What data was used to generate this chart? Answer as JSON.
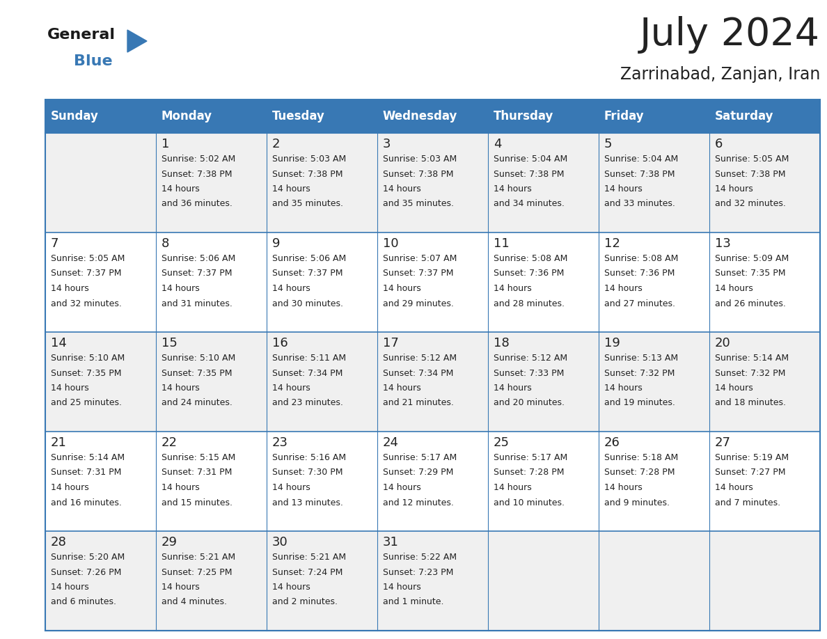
{
  "title": "July 2024",
  "subtitle": "Zarrinabad, Zanjan, Iran",
  "header_color": "#3878b4",
  "header_text_color": "#ffffff",
  "row_bg_odd": "#f0f0f0",
  "row_bg_even": "#ffffff",
  "border_color": "#3878b4",
  "text_color": "#222222",
  "days_of_week": [
    "Sunday",
    "Monday",
    "Tuesday",
    "Wednesday",
    "Thursday",
    "Friday",
    "Saturday"
  ],
  "weeks": [
    [
      {
        "day": "",
        "sunrise": "",
        "sunset": "",
        "daylight": ""
      },
      {
        "day": "1",
        "sunrise": "5:02 AM",
        "sunset": "7:38 PM",
        "daylight": "14 hours\nand 36 minutes."
      },
      {
        "day": "2",
        "sunrise": "5:03 AM",
        "sunset": "7:38 PM",
        "daylight": "14 hours\nand 35 minutes."
      },
      {
        "day": "3",
        "sunrise": "5:03 AM",
        "sunset": "7:38 PM",
        "daylight": "14 hours\nand 35 minutes."
      },
      {
        "day": "4",
        "sunrise": "5:04 AM",
        "sunset": "7:38 PM",
        "daylight": "14 hours\nand 34 minutes."
      },
      {
        "day": "5",
        "sunrise": "5:04 AM",
        "sunset": "7:38 PM",
        "daylight": "14 hours\nand 33 minutes."
      },
      {
        "day": "6",
        "sunrise": "5:05 AM",
        "sunset": "7:38 PM",
        "daylight": "14 hours\nand 32 minutes."
      }
    ],
    [
      {
        "day": "7",
        "sunrise": "5:05 AM",
        "sunset": "7:37 PM",
        "daylight": "14 hours\nand 32 minutes."
      },
      {
        "day": "8",
        "sunrise": "5:06 AM",
        "sunset": "7:37 PM",
        "daylight": "14 hours\nand 31 minutes."
      },
      {
        "day": "9",
        "sunrise": "5:06 AM",
        "sunset": "7:37 PM",
        "daylight": "14 hours\nand 30 minutes."
      },
      {
        "day": "10",
        "sunrise": "5:07 AM",
        "sunset": "7:37 PM",
        "daylight": "14 hours\nand 29 minutes."
      },
      {
        "day": "11",
        "sunrise": "5:08 AM",
        "sunset": "7:36 PM",
        "daylight": "14 hours\nand 28 minutes."
      },
      {
        "day": "12",
        "sunrise": "5:08 AM",
        "sunset": "7:36 PM",
        "daylight": "14 hours\nand 27 minutes."
      },
      {
        "day": "13",
        "sunrise": "5:09 AM",
        "sunset": "7:35 PM",
        "daylight": "14 hours\nand 26 minutes."
      }
    ],
    [
      {
        "day": "14",
        "sunrise": "5:10 AM",
        "sunset": "7:35 PM",
        "daylight": "14 hours\nand 25 minutes."
      },
      {
        "day": "15",
        "sunrise": "5:10 AM",
        "sunset": "7:35 PM",
        "daylight": "14 hours\nand 24 minutes."
      },
      {
        "day": "16",
        "sunrise": "5:11 AM",
        "sunset": "7:34 PM",
        "daylight": "14 hours\nand 23 minutes."
      },
      {
        "day": "17",
        "sunrise": "5:12 AM",
        "sunset": "7:34 PM",
        "daylight": "14 hours\nand 21 minutes."
      },
      {
        "day": "18",
        "sunrise": "5:12 AM",
        "sunset": "7:33 PM",
        "daylight": "14 hours\nand 20 minutes."
      },
      {
        "day": "19",
        "sunrise": "5:13 AM",
        "sunset": "7:32 PM",
        "daylight": "14 hours\nand 19 minutes."
      },
      {
        "day": "20",
        "sunrise": "5:14 AM",
        "sunset": "7:32 PM",
        "daylight": "14 hours\nand 18 minutes."
      }
    ],
    [
      {
        "day": "21",
        "sunrise": "5:14 AM",
        "sunset": "7:31 PM",
        "daylight": "14 hours\nand 16 minutes."
      },
      {
        "day": "22",
        "sunrise": "5:15 AM",
        "sunset": "7:31 PM",
        "daylight": "14 hours\nand 15 minutes."
      },
      {
        "day": "23",
        "sunrise": "5:16 AM",
        "sunset": "7:30 PM",
        "daylight": "14 hours\nand 13 minutes."
      },
      {
        "day": "24",
        "sunrise": "5:17 AM",
        "sunset": "7:29 PM",
        "daylight": "14 hours\nand 12 minutes."
      },
      {
        "day": "25",
        "sunrise": "5:17 AM",
        "sunset": "7:28 PM",
        "daylight": "14 hours\nand 10 minutes."
      },
      {
        "day": "26",
        "sunrise": "5:18 AM",
        "sunset": "7:28 PM",
        "daylight": "14 hours\nand 9 minutes."
      },
      {
        "day": "27",
        "sunrise": "5:19 AM",
        "sunset": "7:27 PM",
        "daylight": "14 hours\nand 7 minutes."
      }
    ],
    [
      {
        "day": "28",
        "sunrise": "5:20 AM",
        "sunset": "7:26 PM",
        "daylight": "14 hours\nand 6 minutes."
      },
      {
        "day": "29",
        "sunrise": "5:21 AM",
        "sunset": "7:25 PM",
        "daylight": "14 hours\nand 4 minutes."
      },
      {
        "day": "30",
        "sunrise": "5:21 AM",
        "sunset": "7:24 PM",
        "daylight": "14 hours\nand 2 minutes."
      },
      {
        "day": "31",
        "sunrise": "5:22 AM",
        "sunset": "7:23 PM",
        "daylight": "14 hours\nand 1 minute."
      },
      {
        "day": "",
        "sunrise": "",
        "sunset": "",
        "daylight": ""
      },
      {
        "day": "",
        "sunrise": "",
        "sunset": "",
        "daylight": ""
      },
      {
        "day": "",
        "sunrise": "",
        "sunset": "",
        "daylight": ""
      }
    ]
  ],
  "logo_color_general": "#1a1a1a",
  "logo_color_blue": "#3878b4",
  "title_fontsize": 40,
  "subtitle_fontsize": 17,
  "header_fontsize": 12,
  "day_num_fontsize": 13,
  "cell_text_fontsize": 9
}
